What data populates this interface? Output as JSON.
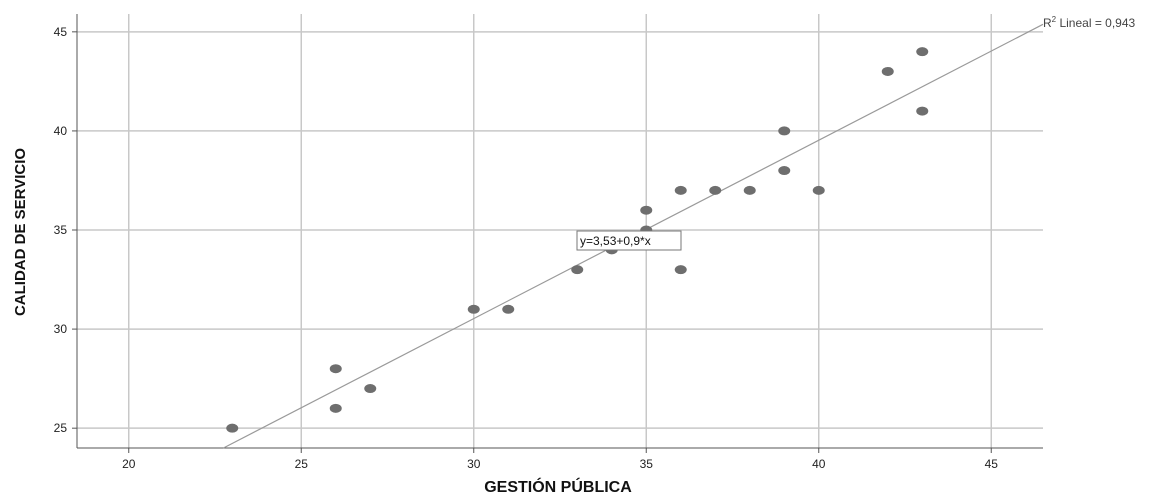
{
  "chart_data": {
    "type": "scatter",
    "title": "",
    "xlabel": "GESTIÓN PÚBLICA",
    "ylabel": "CALIDAD DE SERVICIO",
    "xlim": [
      18.5,
      46.5
    ],
    "ylim": [
      24.0,
      45.9
    ],
    "xticks": [
      20,
      25,
      30,
      35,
      40,
      45
    ],
    "yticks": [
      25,
      30,
      35,
      40,
      45
    ],
    "xtick_labels": [
      "20",
      "25",
      "30",
      "35",
      "40",
      "45"
    ],
    "ytick_labels": [
      "25",
      "30",
      "35",
      "40",
      "45"
    ],
    "grid": true,
    "colors": {
      "points": "#6e6e6e",
      "fit_line": "#9a9a9a",
      "grid": "#c8c8c8",
      "axis": "#555555"
    },
    "points": [
      {
        "x": 23,
        "y": 25
      },
      {
        "x": 26,
        "y": 28
      },
      {
        "x": 26,
        "y": 26
      },
      {
        "x": 27,
        "y": 27
      },
      {
        "x": 30,
        "y": 31
      },
      {
        "x": 31,
        "y": 31
      },
      {
        "x": 33,
        "y": 33
      },
      {
        "x": 34,
        "y": 34
      },
      {
        "x": 35,
        "y": 36
      },
      {
        "x": 35,
        "y": 35
      },
      {
        "x": 36,
        "y": 37
      },
      {
        "x": 36,
        "y": 33
      },
      {
        "x": 37,
        "y": 37
      },
      {
        "x": 38,
        "y": 37
      },
      {
        "x": 39,
        "y": 40
      },
      {
        "x": 39,
        "y": 38
      },
      {
        "x": 40,
        "y": 37
      },
      {
        "x": 42,
        "y": 43
      },
      {
        "x": 43,
        "y": 44
      },
      {
        "x": 43,
        "y": 41
      }
    ],
    "fit_line": {
      "intercept": 3.53,
      "slope": 0.9
    },
    "equation_label": "y=3,53+0,9*x",
    "r2_label": {
      "prefix": "R",
      "superscript": "2",
      "text": " Lineal = 0,943"
    }
  }
}
